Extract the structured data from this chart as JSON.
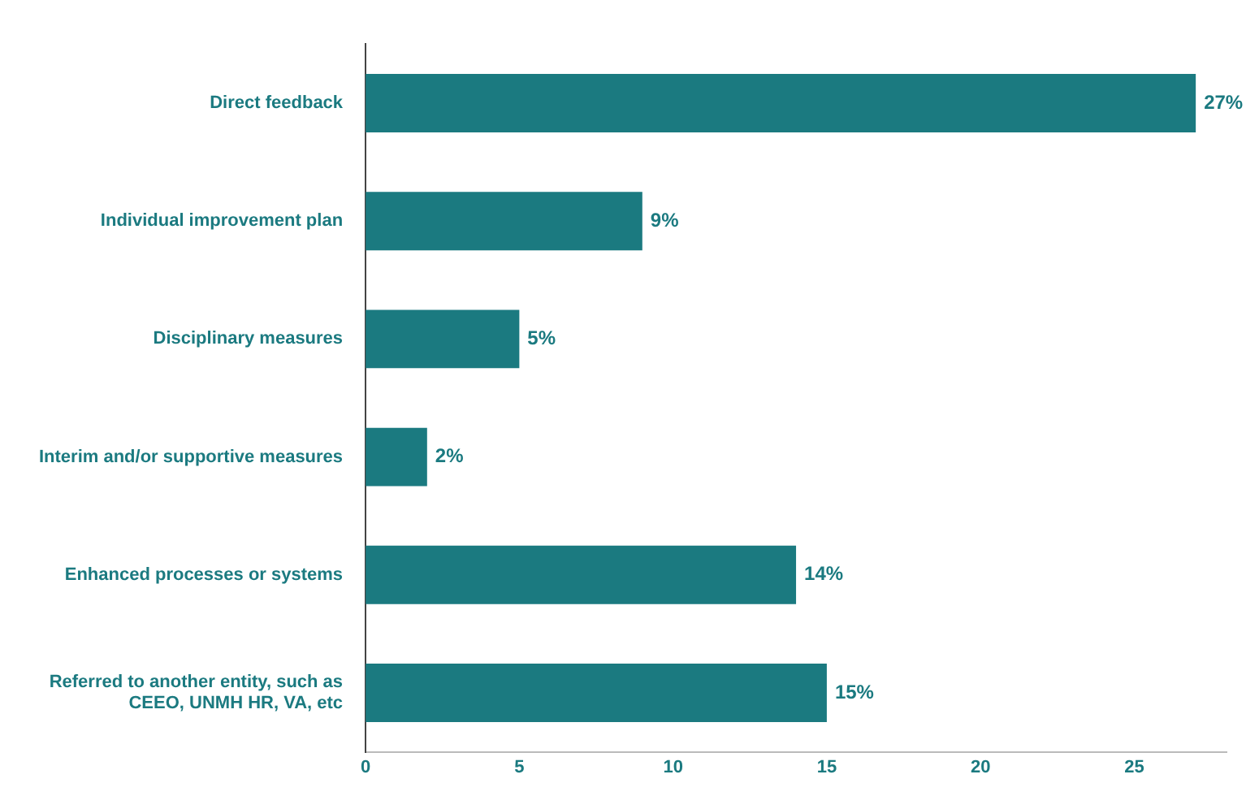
{
  "chart_data": {
    "type": "bar",
    "orientation": "horizontal",
    "categories": [
      "Direct feedback",
      "Individual improvement plan",
      "Disciplinary measures",
      "Interim and/or supportive measures",
      "Enhanced processes or systems",
      "Referred to another entity, such as CEEO, UNMH HR, VA, etc"
    ],
    "values": [
      27,
      9,
      5,
      2,
      14,
      15
    ],
    "value_labels": [
      "27%",
      "9%",
      "5%",
      "2%",
      "14%",
      "15%"
    ],
    "color": "#1b7a80",
    "xlim": [
      0,
      28
    ],
    "xticks": [
      0,
      5,
      10,
      15,
      20,
      25
    ],
    "grid": false,
    "legend": false
  }
}
